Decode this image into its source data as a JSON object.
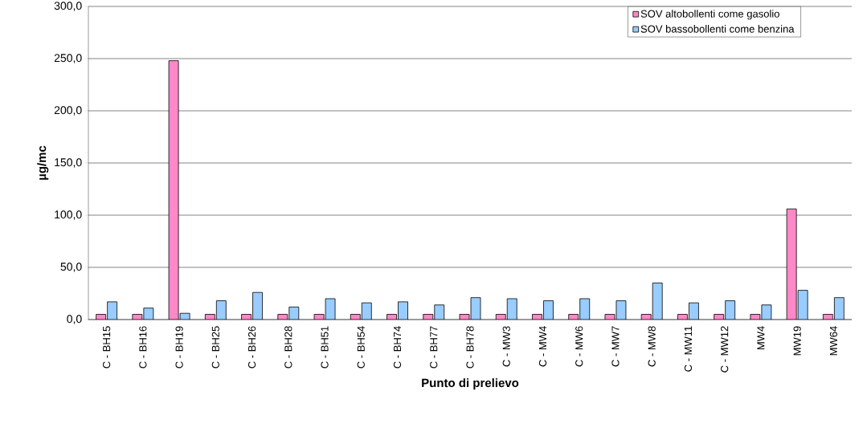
{
  "chart_data": {
    "type": "bar",
    "xlabel": "Punto di prelievo",
    "ylabel": "µg/mc",
    "categories": [
      "C - BH15",
      "C - BH16",
      "C - BH19",
      "C - BH25",
      "C - BH26",
      "C - BH28",
      "C - BH51",
      "C - BH54",
      "C - BH74",
      "C - BH77",
      "C - BH78",
      "C - MW3",
      "C - MW4",
      "C - MW6",
      "C - MW7",
      "C - MW8",
      "C - MW11",
      "C - MW12",
      "MW4",
      "MW19",
      "MW64"
    ],
    "series": [
      {
        "name": "SOV altobollenti come gasolio",
        "color": "#ff88c8",
        "values": [
          5,
          5,
          248,
          5,
          5,
          5,
          5,
          5,
          5,
          5,
          5,
          5,
          5,
          5,
          5,
          5,
          5,
          5,
          5,
          106,
          5
        ]
      },
      {
        "name": "SOV bassobollenti come benzina",
        "color": "#99ccff",
        "values": [
          17,
          11,
          6,
          18,
          26,
          12,
          20,
          16,
          17,
          14,
          21,
          20,
          18,
          20,
          18,
          35,
          16,
          18,
          14,
          28,
          21
        ]
      }
    ],
    "ylim": [
      0,
      300
    ],
    "yticks": [
      {
        "value": 0,
        "label": "0,0"
      },
      {
        "value": 50,
        "label": "50,0"
      },
      {
        "value": 100,
        "label": "100,0"
      },
      {
        "value": 150,
        "label": "150,0"
      },
      {
        "value": 200,
        "label": "200,0"
      },
      {
        "value": 250,
        "label": "250,0"
      },
      {
        "value": 300,
        "label": "300,0"
      }
    ],
    "grid": "y",
    "legend": "top right"
  }
}
